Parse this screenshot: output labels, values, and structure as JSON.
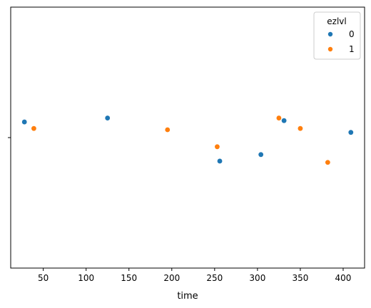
{
  "chart_data": {
    "type": "scatter",
    "title": "",
    "xlabel": "time",
    "ylabel": "",
    "xlim": [
      12,
      425
    ],
    "x_ticks": [
      50,
      100,
      150,
      200,
      250,
      300,
      350,
      400
    ],
    "grid": false,
    "legend": {
      "title": "ezlvl",
      "placement": "top-right"
    },
    "series": [
      {
        "name": "0",
        "color": "#1f77b4",
        "x": [
          28,
          125,
          256,
          304,
          331,
          409
        ],
        "jitter": [
          -0.12,
          -0.15,
          0.18,
          0.13,
          -0.13,
          -0.04
        ]
      },
      {
        "name": "1",
        "color": "#ff7f0e",
        "x": [
          39,
          195,
          253,
          325,
          350,
          382
        ],
        "jitter": [
          -0.07,
          -0.06,
          0.07,
          -0.15,
          -0.07,
          0.19
        ]
      }
    ]
  }
}
